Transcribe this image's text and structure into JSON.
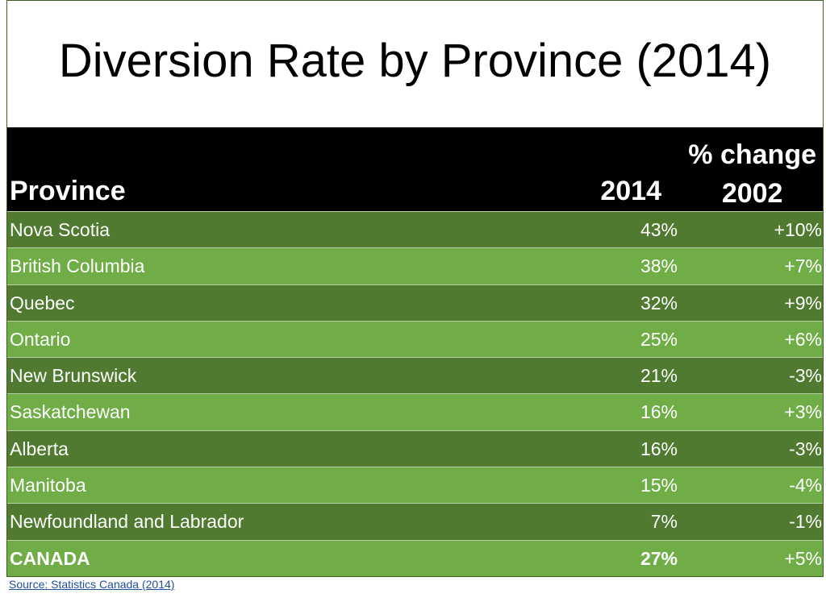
{
  "chart_data": {
    "type": "table",
    "title": "Diversion Rate by Province (2014)",
    "columns": [
      "Province",
      "2014",
      "% change 2002"
    ],
    "header": {
      "province": "Province",
      "year": "2014",
      "change_line1": "% change",
      "change_line2": "2002"
    },
    "rows": [
      {
        "province": "Nova Scotia",
        "value": "43%",
        "change": "+10%"
      },
      {
        "province": "British Columbia",
        "value": "38%",
        "change": "+7%"
      },
      {
        "province": "Quebec",
        "value": "32%",
        "change": "+9%"
      },
      {
        "province": "Ontario",
        "value": "25%",
        "change": "+6%"
      },
      {
        "province": "New Brunswick",
        "value": "21%",
        "change": "-3%"
      },
      {
        "province": "Saskatchewan",
        "value": "16%",
        "change": "+3%"
      },
      {
        "province": "Alberta",
        "value": "16%",
        "change": "-3%"
      },
      {
        "province": "Manitoba",
        "value": "15%",
        "change": "-4%"
      },
      {
        "province": "Newfoundland and Labrador",
        "value": "7%",
        "change": "-1%"
      },
      {
        "province": "CANADA",
        "value": "27%",
        "change": "+5%"
      }
    ],
    "source": "Source: Statistics Canada (2014)"
  }
}
